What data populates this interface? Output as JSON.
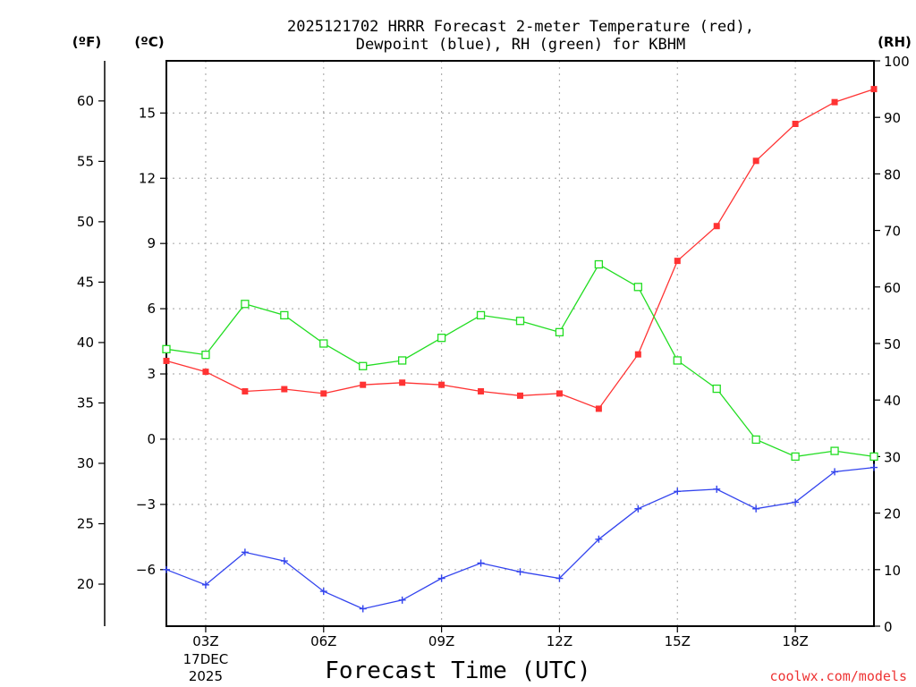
{
  "chart_data": {
    "type": "line",
    "title": [
      "2025121702 HRRR Forecast 2-meter Temperature (red),",
      "Dewpoint (blue), RH (green) for KBHM"
    ],
    "xlabel": "Forecast Time (UTC)",
    "unit_labels": {
      "fahrenheit": "(ºF)",
      "celsius": "(ºC)",
      "rh": "(RH)"
    },
    "x_hours": [
      2,
      3,
      4,
      5,
      6,
      7,
      8,
      9,
      10,
      11,
      12,
      13,
      14,
      15,
      16,
      17,
      18,
      19,
      20
    ],
    "xlim": [
      2,
      20
    ],
    "x_ticks": [
      {
        "hour": 3,
        "label": "03Z",
        "sublabels": [
          "17DEC",
          "2025"
        ]
      },
      {
        "hour": 6,
        "label": "06Z"
      },
      {
        "hour": 9,
        "label": "09Z"
      },
      {
        "hour": 12,
        "label": "12Z"
      },
      {
        "hour": 15,
        "label": "15Z"
      },
      {
        "hour": 18,
        "label": "18Z"
      }
    ],
    "celsius_axis": {
      "ylim": [
        -8.6,
        17.4
      ],
      "ticks": [
        -6,
        -3,
        0,
        3,
        6,
        9,
        12,
        15
      ]
    },
    "fahrenheit_axis": {
      "ticks": [
        20,
        25,
        30,
        35,
        40,
        45,
        50,
        55,
        60
      ]
    },
    "rh_axis": {
      "ylim": [
        0,
        100
      ],
      "ticks": [
        0,
        10,
        20,
        30,
        40,
        50,
        60,
        70,
        80,
        90,
        100
      ]
    },
    "series": [
      {
        "name": "Temperature",
        "axis": "celsius",
        "color": "#ff3333",
        "marker": "filled-square",
        "values": [
          3.6,
          3.1,
          2.2,
          2.3,
          2.1,
          2.5,
          2.6,
          2.5,
          2.2,
          2.0,
          2.1,
          1.4,
          3.9,
          8.2,
          9.8,
          12.8,
          14.5,
          15.5,
          16.1
        ]
      },
      {
        "name": "Dewpoint",
        "axis": "celsius",
        "color": "#3344ee",
        "marker": "plus",
        "values": [
          -6.0,
          -6.7,
          -5.2,
          -5.6,
          -7.0,
          -7.8,
          -7.4,
          -6.4,
          -5.7,
          -6.1,
          -6.4,
          -4.6,
          -3.2,
          -2.4,
          -2.3,
          -3.2,
          -2.9,
          -1.5,
          -1.3
        ]
      },
      {
        "name": "RH",
        "axis": "rh",
        "color": "#22dd22",
        "marker": "open-square",
        "values": [
          49,
          48,
          57,
          55,
          50,
          46,
          47,
          51,
          55,
          54,
          52,
          64,
          60,
          47,
          42,
          33,
          30,
          31,
          30
        ]
      }
    ],
    "grid": true
  },
  "credit": {
    "text": "coolwx.com/models",
    "color": "#ee3333"
  }
}
